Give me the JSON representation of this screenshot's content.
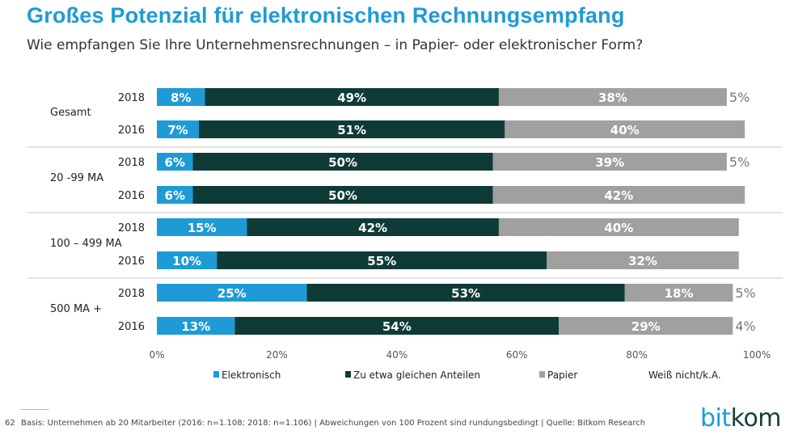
{
  "header": {
    "title": "Großes Potenzial für elektronischen Rechnungsempfang",
    "subtitle": "Wie empfangen Sie Ihre Unternehmensrechnungen – in Papier- oder elektronischer Form?"
  },
  "footer": {
    "page_number": "62",
    "note": "Basis: Unternehmen ab 20 Mitarbeiter (2016: n=1.108; 2018: n=1.106) | Abweichungen von 100 Prozent sind rundungsbedingt | Quelle: Bitkom Research"
  },
  "logo": {
    "part1": "bit",
    "part2": "kom"
  },
  "colors": {
    "title": "#1e9bd6",
    "elektronisch": "#1e9bd6",
    "gleich": "#0f3b37",
    "papier": "#a0a0a0",
    "text_dark": "#222222",
    "separator": "#c8c8c8"
  },
  "chart_data": {
    "type": "bar",
    "orientation": "horizontal",
    "stacked": true,
    "xlim": [
      0,
      100
    ],
    "x_ticks": [
      "0%",
      "20%",
      "40%",
      "60%",
      "80%",
      "100%"
    ],
    "legend_position": "bottom",
    "legend": [
      "Elektronisch",
      "Zu etwa gleichen Anteilen",
      "Papier",
      "Weiß nicht/k.A."
    ],
    "series": [
      {
        "name": "Elektronisch",
        "color": "#1e9bd6"
      },
      {
        "name": "Zu etwa gleichen Anteilen",
        "color": "#0f3b37"
      },
      {
        "name": "Papier",
        "color": "#a0a0a0"
      },
      {
        "name": "Weiß nicht/k.A.",
        "color": "#ffffff"
      }
    ],
    "groups": [
      {
        "label": "Gesamt",
        "rows": [
          {
            "year": "2018",
            "values": [
              8,
              49,
              38,
              5
            ],
            "labels": [
              "8%",
              "49%",
              "38%",
              "5%"
            ]
          },
          {
            "year": "2016",
            "values": [
              7,
              51,
              40,
              0
            ],
            "labels": [
              "7%",
              "51%",
              "40%",
              ""
            ]
          }
        ]
      },
      {
        "label": "20 -99 MA",
        "rows": [
          {
            "year": "2018",
            "values": [
              6,
              50,
              39,
              5
            ],
            "labels": [
              "6%",
              "50%",
              "39%",
              "5%"
            ]
          },
          {
            "year": "2016",
            "values": [
              6,
              50,
              42,
              0
            ],
            "labels": [
              "6%",
              "50%",
              "42%",
              ""
            ]
          }
        ]
      },
      {
        "label": "100 – 499 MA",
        "rows": [
          {
            "year": "2018",
            "values": [
              15,
              42,
              40,
              0
            ],
            "labels": [
              "15%",
              "42%",
              "40%",
              ""
            ]
          },
          {
            "year": "2016",
            "values": [
              10,
              55,
              32,
              0
            ],
            "labels": [
              "10%",
              "55%",
              "32%",
              ""
            ]
          }
        ]
      },
      {
        "label": "500 MA +",
        "rows": [
          {
            "year": "2018",
            "values": [
              25,
              53,
              18,
              5
            ],
            "labels": [
              "25%",
              "53%",
              "18%",
              "5%"
            ]
          },
          {
            "year": "2016",
            "values": [
              13,
              54,
              29,
              4
            ],
            "labels": [
              "13%",
              "54%",
              "29%",
              "4%"
            ]
          }
        ]
      }
    ]
  }
}
